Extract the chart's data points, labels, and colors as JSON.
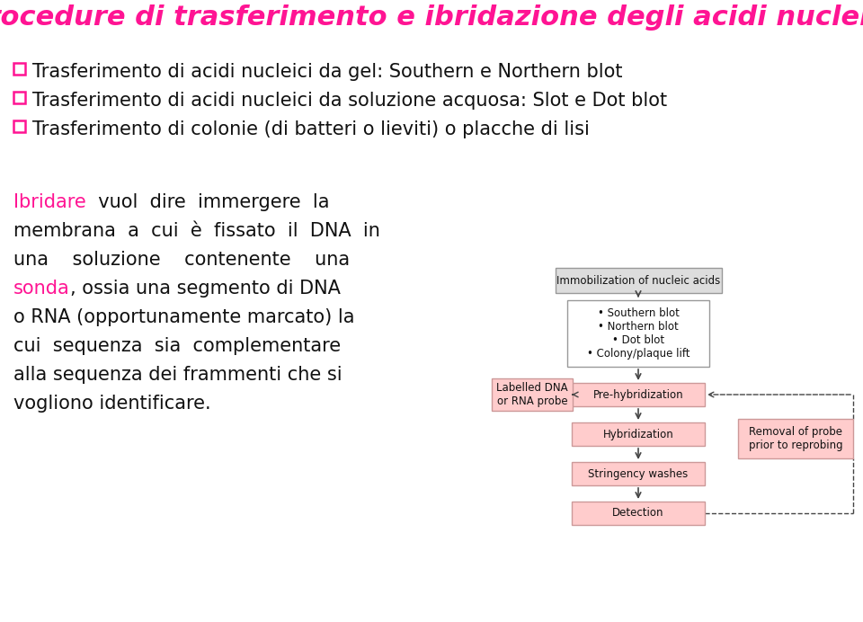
{
  "title": "Procedure di trasferimento e ibridazione degli acidi nucleici",
  "title_color": "#FF1493",
  "title_fontsize": 22,
  "bg_color": "#FFFFFF",
  "bullet_color": "#FF1493",
  "bullet_items": [
    "Trasferimento di acidi nucleici da gel: Southern e Northern blot",
    "Trasferimento di acidi nucleici da soluzione acquosa: Slot e Dot blot",
    "Trasferimento di colonie (di batteri o lieviti) o placche di lisi"
  ],
  "ibridare_color": "#FF1493",
  "sonda_color": "#FF1493",
  "box_pink_fill": "#FFCCCC",
  "box_pink_edge": "#CC9999",
  "box_gray_fill": "#DDDDDD",
  "box_gray_edge": "#999999",
  "box_white_fill": "#FFFFFF",
  "box_white_edge": "#999999",
  "arrow_color": "#444444",
  "text_color": "#111111",
  "text_fontsize": 15,
  "diag_fontsize": 8.5
}
